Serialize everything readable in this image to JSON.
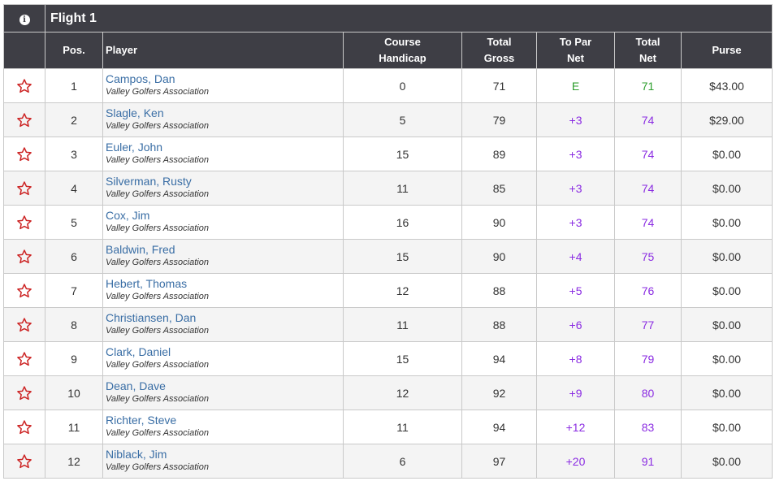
{
  "flight": {
    "info_icon": "i",
    "title": "Flight 1"
  },
  "columns": {
    "pos": "Pos.",
    "player": "Player",
    "handicap_1": "Course",
    "handicap_2": "Handicap",
    "gross_1": "Total",
    "gross_2": "Gross",
    "topar_1": "To Par",
    "topar_2": "Net",
    "net_1": "Total",
    "net_2": "Net",
    "purse": "Purse"
  },
  "icons": {
    "favorite": "star-outline-icon",
    "info": "info-icon"
  },
  "colors": {
    "header": "#3e3e45",
    "link": "#3a6ea5",
    "over_par": "#8a2be2",
    "even_par": "#2e9e2e",
    "star": "#cc2222"
  },
  "rows": [
    {
      "pos": "1",
      "name": "Campos, Dan",
      "club": "Valley Golfers Association",
      "handicap": "0",
      "gross": "71",
      "topar": "E",
      "net": "71",
      "purse": "$43.00"
    },
    {
      "pos": "2",
      "name": "Slagle, Ken",
      "club": "Valley Golfers Association",
      "handicap": "5",
      "gross": "79",
      "topar": "+3",
      "net": "74",
      "purse": "$29.00"
    },
    {
      "pos": "3",
      "name": "Euler, John",
      "club": "Valley Golfers Association",
      "handicap": "15",
      "gross": "89",
      "topar": "+3",
      "net": "74",
      "purse": "$0.00"
    },
    {
      "pos": "4",
      "name": "Silverman, Rusty",
      "club": "Valley Golfers Association",
      "handicap": "11",
      "gross": "85",
      "topar": "+3",
      "net": "74",
      "purse": "$0.00"
    },
    {
      "pos": "5",
      "name": "Cox, Jim",
      "club": "Valley Golfers Association",
      "handicap": "16",
      "gross": "90",
      "topar": "+3",
      "net": "74",
      "purse": "$0.00"
    },
    {
      "pos": "6",
      "name": "Baldwin, Fred",
      "club": "Valley Golfers Association",
      "handicap": "15",
      "gross": "90",
      "topar": "+4",
      "net": "75",
      "purse": "$0.00"
    },
    {
      "pos": "7",
      "name": "Hebert, Thomas",
      "club": "Valley Golfers Association",
      "handicap": "12",
      "gross": "88",
      "topar": "+5",
      "net": "76",
      "purse": "$0.00"
    },
    {
      "pos": "8",
      "name": "Christiansen, Dan",
      "club": "Valley Golfers Association",
      "handicap": "11",
      "gross": "88",
      "topar": "+6",
      "net": "77",
      "purse": "$0.00"
    },
    {
      "pos": "9",
      "name": "Clark, Daniel",
      "club": "Valley Golfers Association",
      "handicap": "15",
      "gross": "94",
      "topar": "+8",
      "net": "79",
      "purse": "$0.00"
    },
    {
      "pos": "10",
      "name": "Dean, Dave",
      "club": "Valley Golfers Association",
      "handicap": "12",
      "gross": "92",
      "topar": "+9",
      "net": "80",
      "purse": "$0.00"
    },
    {
      "pos": "11",
      "name": "Richter, Steve",
      "club": "Valley Golfers Association",
      "handicap": "11",
      "gross": "94",
      "topar": "+12",
      "net": "83",
      "purse": "$0.00"
    },
    {
      "pos": "12",
      "name": "Niblack, Jim",
      "club": "Valley Golfers Association",
      "handicap": "6",
      "gross": "97",
      "topar": "+20",
      "net": "91",
      "purse": "$0.00"
    }
  ]
}
